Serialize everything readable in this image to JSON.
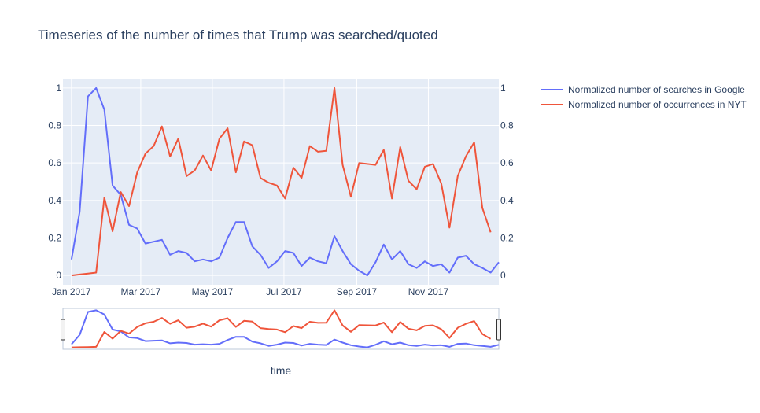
{
  "chart_data": {
    "type": "line",
    "title": "Timeseries of the number of times that Trump was searched/quoted",
    "xlabel": "time",
    "x_start": "2017-01-01",
    "x_step_days": 7,
    "x_ticks": [
      {
        "date": "2017-01-01",
        "label": "Jan 2017"
      },
      {
        "date": "2017-03-01",
        "label": "Mar 2017"
      },
      {
        "date": "2017-05-01",
        "label": "May 2017"
      },
      {
        "date": "2017-07-01",
        "label": "Jul 2017"
      },
      {
        "date": "2017-09-01",
        "label": "Sep 2017"
      },
      {
        "date": "2017-11-01",
        "label": "Nov 2017"
      }
    ],
    "y_ticks": [
      {
        "value": 0,
        "label": "0"
      },
      {
        "value": 0.2,
        "label": "0.2"
      },
      {
        "value": 0.4,
        "label": "0.4"
      },
      {
        "value": 0.6,
        "label": "0.6"
      },
      {
        "value": 0.8,
        "label": "0.8"
      },
      {
        "value": 1,
        "label": "1"
      }
    ],
    "ylim": [
      -0.05,
      1.05
    ],
    "grid": true,
    "legend_position": "top-right",
    "has_range_slider": true,
    "series": [
      {
        "name": "Normalized number of searches in Google",
        "color": "#636efa",
        "axis": "left",
        "values": [
          0.085,
          0.34,
          0.955,
          1.0,
          0.885,
          0.48,
          0.43,
          0.27,
          0.25,
          0.17,
          0.18,
          0.19,
          0.11,
          0.13,
          0.12,
          0.075,
          0.085,
          0.075,
          0.095,
          0.2,
          0.285,
          0.285,
          0.155,
          0.11,
          0.04,
          0.075,
          0.13,
          0.12,
          0.05,
          0.095,
          0.075,
          0.065,
          0.21,
          0.13,
          0.06,
          0.025,
          0.0,
          0.07,
          0.165,
          0.085,
          0.13,
          0.06,
          0.04,
          0.075,
          0.05,
          0.06,
          0.015,
          0.095,
          0.105,
          0.06,
          0.04,
          0.015,
          0.07
        ]
      },
      {
        "name": "Normalized number of occurrences in NYT",
        "color": "#ef553b",
        "axis": "right",
        "values": [
          0.0,
          0.005,
          0.01,
          0.015,
          0.415,
          0.235,
          0.445,
          0.37,
          0.55,
          0.65,
          0.69,
          0.795,
          0.635,
          0.73,
          0.53,
          0.56,
          0.64,
          0.56,
          0.73,
          0.785,
          0.55,
          0.715,
          0.695,
          0.52,
          0.495,
          0.48,
          0.41,
          0.575,
          0.52,
          0.69,
          0.66,
          0.665,
          1.0,
          0.59,
          0.42,
          0.6,
          0.595,
          0.59,
          0.67,
          0.41,
          0.685,
          0.505,
          0.46,
          0.58,
          0.595,
          0.49,
          0.255,
          0.53,
          0.635,
          0.71,
          0.36,
          0.23
        ]
      }
    ]
  }
}
